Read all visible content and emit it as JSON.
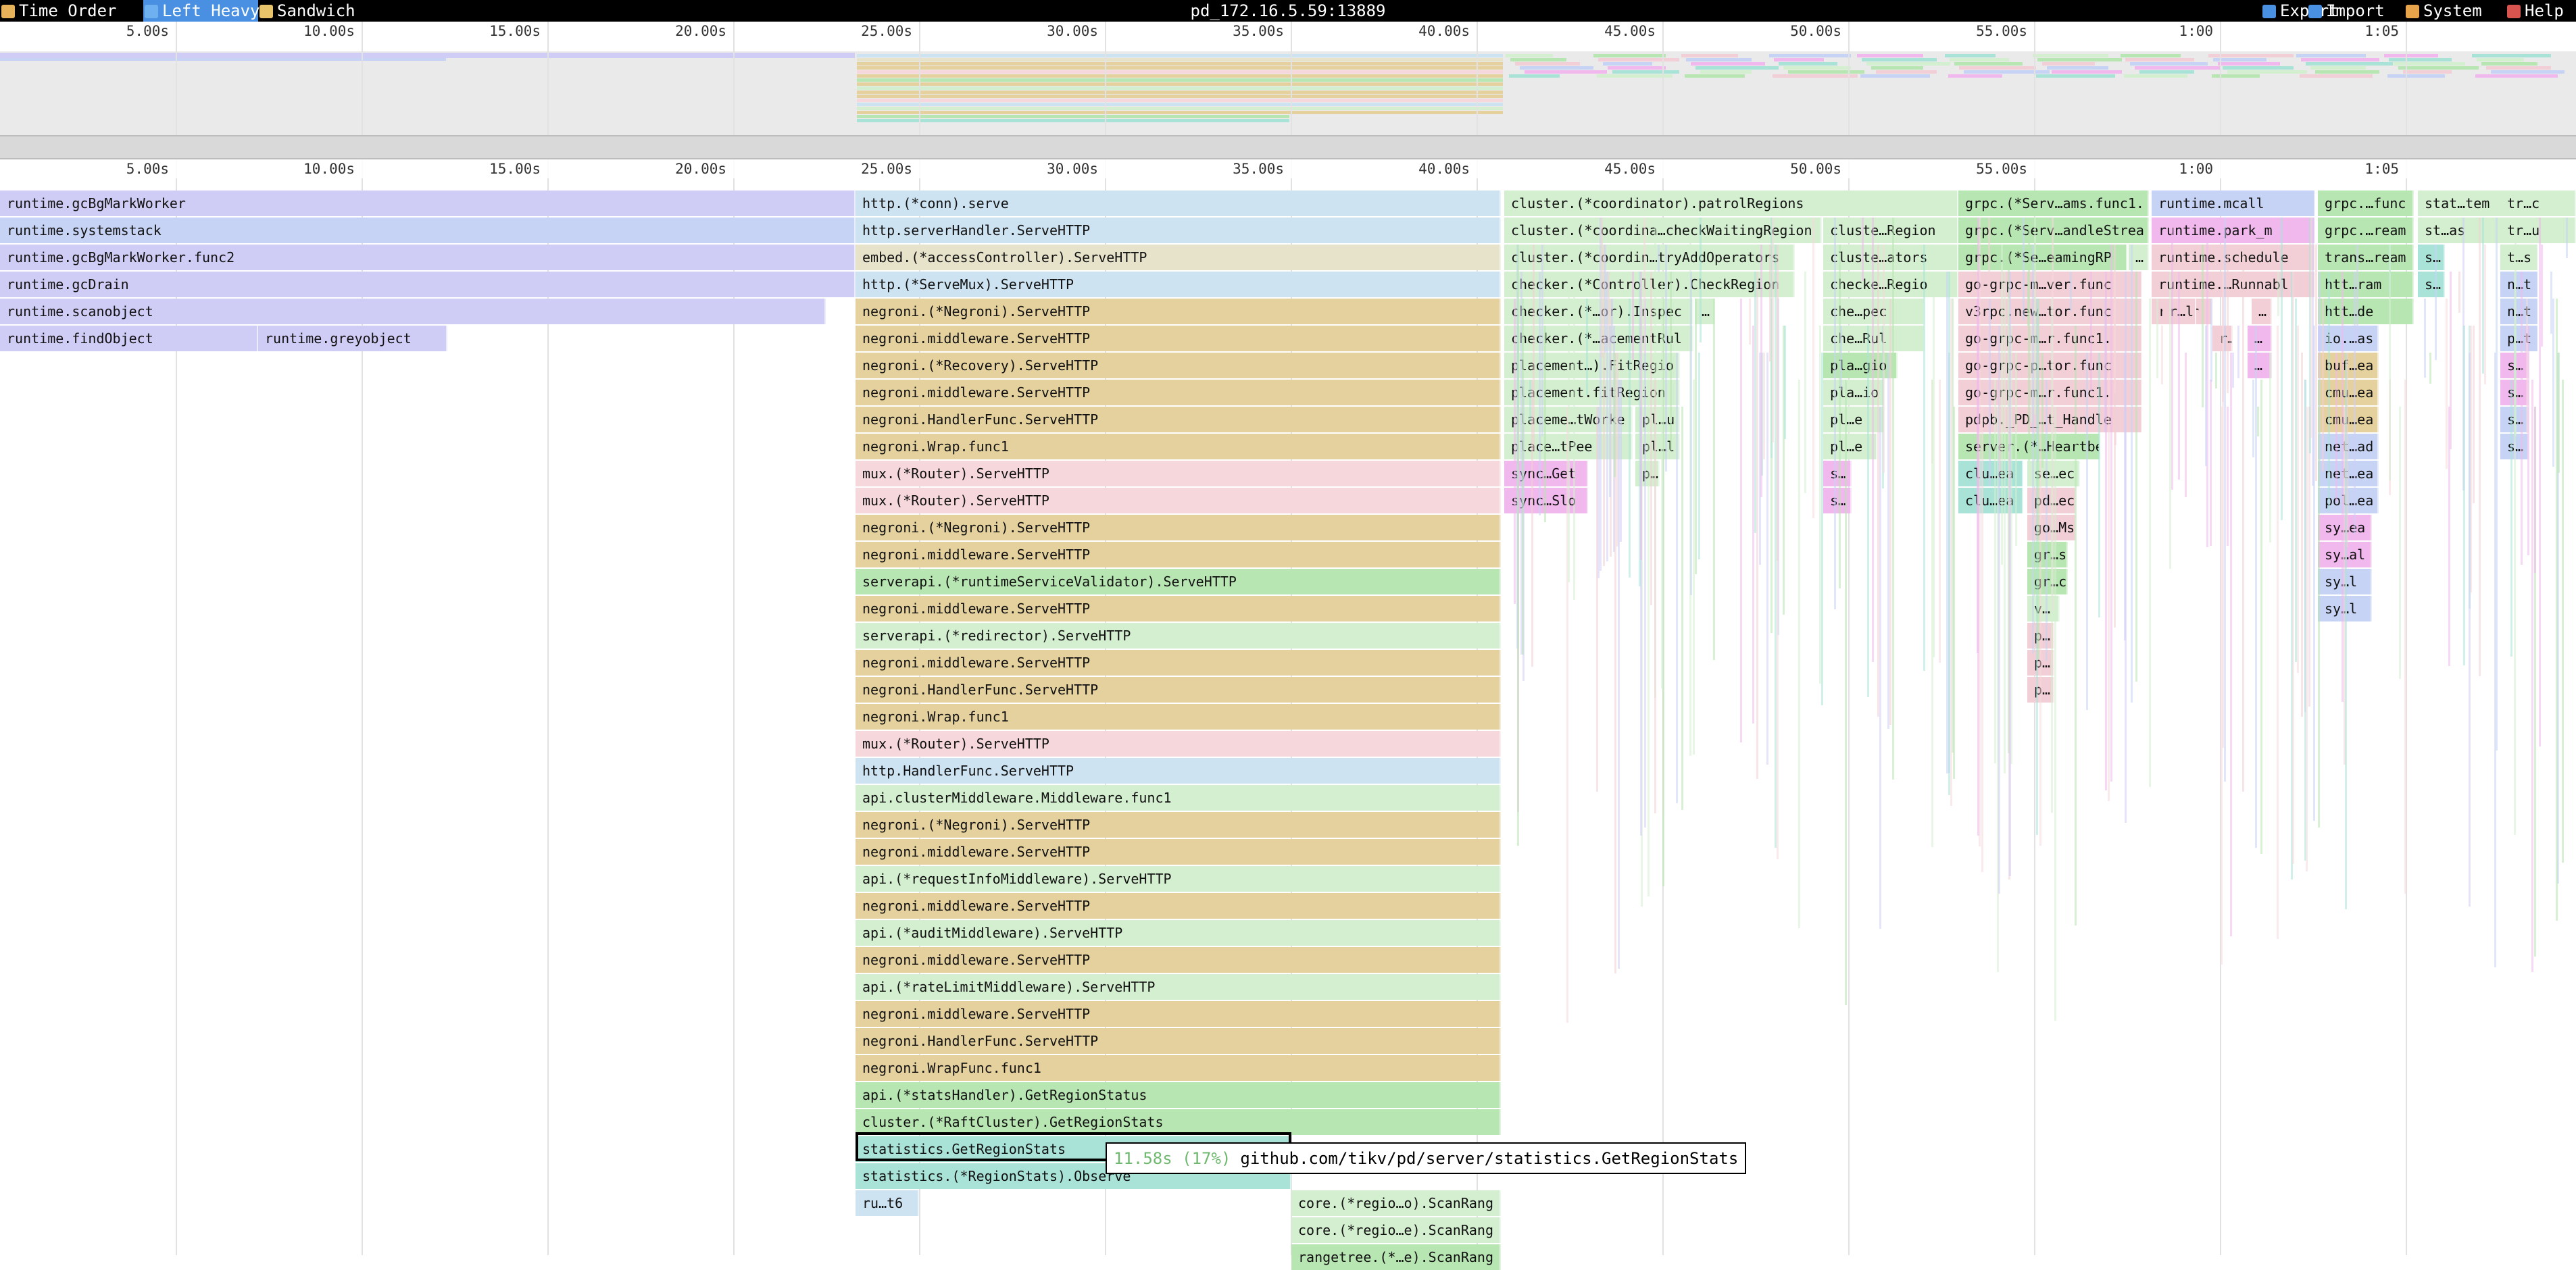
{
  "toolbar": {
    "left": [
      {
        "label": "Time Order",
        "icon": "clock-icon",
        "active": false
      },
      {
        "label": "Left Heavy",
        "icon": "left-heavy-icon",
        "active": true
      },
      {
        "label": "Sandwich",
        "icon": "sandwich-icon",
        "active": false
      }
    ],
    "title": "pd_172.16.5.59:13889",
    "right": [
      {
        "label": "Export",
        "icon": "export-icon"
      },
      {
        "label": "Import",
        "icon": "import-icon"
      },
      {
        "label": "System",
        "icon": "palette-icon"
      },
      {
        "label": "Help",
        "icon": "help-icon"
      }
    ]
  },
  "axis_ticks": [
    "5.00s",
    "10.00s",
    "15.00s",
    "20.00s",
    "25.00s",
    "30.00s",
    "35.00s",
    "40.00s",
    "45.00s",
    "50.00s",
    "55.00s",
    "1:00",
    "1:05"
  ],
  "colors": {
    "blue": "#c6d3f5",
    "lavender": "#cfcdf6",
    "lightblue": "#cde3f2",
    "cream": "#e7e3cb",
    "tan": "#e4d19e",
    "pink": "#f6d8dc",
    "green": "#b8e6b2",
    "lightgreen": "#d3efcf",
    "teal": "#a9e3d8",
    "rose": "#f2cfd6",
    "magenta": "#f0b8ec",
    "selection": "#000000"
  },
  "frames": [
    {
      "label": "runtime.gcBgMarkWorker",
      "color": "lavender"
    },
    {
      "label": "runtime.systemstack",
      "color": "blue"
    },
    {
      "label": "runtime.gcBgMarkWorker.func2",
      "color": "lavender"
    },
    {
      "label": "runtime.gcDrain",
      "color": "lavender"
    },
    {
      "label": "runtime.scanobject",
      "color": "lavender"
    },
    {
      "label": "runtime.findObject",
      "color": "lavender"
    },
    {
      "label": "runtime.greyobject",
      "color": "lavender"
    },
    {
      "label": "http.(*conn).serve",
      "color": "lightblue"
    },
    {
      "label": "http.serverHandler.ServeHTTP",
      "color": "lightblue"
    },
    {
      "label": "embed.(*accessController).ServeHTTP",
      "color": "cream"
    },
    {
      "label": "http.(*ServeMux).ServeHTTP",
      "color": "lightblue"
    },
    {
      "label": "negroni.(*Negroni).ServeHTTP",
      "color": "tan"
    },
    {
      "label": "negroni.middleware.ServeHTTP",
      "color": "tan"
    },
    {
      "label": "negroni.(*Recovery).ServeHTTP",
      "color": "tan"
    },
    {
      "label": "negroni.middleware.ServeHTTP",
      "color": "tan"
    },
    {
      "label": "negroni.HandlerFunc.ServeHTTP",
      "color": "tan"
    },
    {
      "label": "negroni.Wrap.func1",
      "color": "tan"
    },
    {
      "label": "mux.(*Router).ServeHTTP",
      "color": "pink"
    },
    {
      "label": "mux.(*Router).ServeHTTP",
      "color": "pink"
    },
    {
      "label": "negroni.(*Negroni).ServeHTTP",
      "color": "tan"
    },
    {
      "label": "negroni.middleware.ServeHTTP",
      "color": "tan"
    },
    {
      "label": "serverapi.(*runtimeServiceValidator).ServeHTTP",
      "color": "green"
    },
    {
      "label": "negroni.middleware.ServeHTTP",
      "color": "tan"
    },
    {
      "label": "serverapi.(*redirector).ServeHTTP",
      "color": "lightgreen"
    },
    {
      "label": "negroni.middleware.ServeHTTP",
      "color": "tan"
    },
    {
      "label": "negroni.HandlerFunc.ServeHTTP",
      "color": "tan"
    },
    {
      "label": "negroni.Wrap.func1",
      "color": "tan"
    },
    {
      "label": "mux.(*Router).ServeHTTP",
      "color": "pink"
    },
    {
      "label": "http.HandlerFunc.ServeHTTP",
      "color": "lightblue"
    },
    {
      "label": "api.clusterMiddleware.Middleware.func1",
      "color": "lightgreen"
    },
    {
      "label": "negroni.(*Negroni).ServeHTTP",
      "color": "tan"
    },
    {
      "label": "negroni.middleware.ServeHTTP",
      "color": "tan"
    },
    {
      "label": "api.(*requestInfoMiddleware).ServeHTTP",
      "color": "lightgreen"
    },
    {
      "label": "negroni.middleware.ServeHTTP",
      "color": "tan"
    },
    {
      "label": "api.(*auditMiddleware).ServeHTTP",
      "color": "lightgreen"
    },
    {
      "label": "negroni.middleware.ServeHTTP",
      "color": "tan"
    },
    {
      "label": "api.(*rateLimitMiddleware).ServeHTTP",
      "color": "lightgreen"
    },
    {
      "label": "negroni.middleware.ServeHTTP",
      "color": "tan"
    },
    {
      "label": "negroni.HandlerFunc.ServeHTTP",
      "color": "tan"
    },
    {
      "label": "negroni.WrapFunc.func1",
      "color": "tan"
    },
    {
      "label": "api.(*statsHandler).GetRegionStatus",
      "color": "green"
    },
    {
      "label": "cluster.(*RaftCluster).GetRegionStats",
      "color": "green"
    },
    {
      "label": "statistics.GetRegionStats",
      "color": "teal"
    },
    {
      "label": "statistics.(*RegionStats).Observe",
      "color": "teal"
    },
    {
      "label": "ru…t6",
      "color": "lightblue"
    },
    {
      "label": "core.(*regio…o).ScanRang",
      "color": "lightgreen"
    },
    {
      "label": "core.(*regio…e).ScanRang",
      "color": "lightgreen"
    },
    {
      "label": "rangetree.(*…e).ScanRang",
      "color": "green"
    },
    {
      "label": "cluster.(*coordinator).patrolRegions",
      "color": "lightgreen"
    },
    {
      "label": "cluster.(*coordina…checkWaitingRegion",
      "color": "lightgreen"
    },
    {
      "label": "cluster.(*coordin…tryAddOperators",
      "color": "lightgreen"
    },
    {
      "label": "checker.(*Controller).CheckRegion",
      "color": "lightgreen"
    },
    {
      "label": "checker.(*…or).Inspec",
      "color": "lightgreen"
    },
    {
      "label": "checker.(*…acementRul",
      "color": "lightgreen"
    },
    {
      "label": "placement…).FitRegio",
      "color": "lightgreen"
    },
    {
      "label": "placement.fitRegion",
      "color": "lightgreen"
    },
    {
      "label": "placeme…tWorke",
      "color": "lightgreen"
    },
    {
      "label": "pl…u",
      "color": "lightgreen"
    },
    {
      "label": "place…tPee",
      "color": "lightgreen"
    },
    {
      "label": "pl…l",
      "color": "lightgreen"
    },
    {
      "label": "sync…Get",
      "color": "magenta"
    },
    {
      "label": "p…",
      "color": "lightgreen"
    },
    {
      "label": "sync…Slo",
      "color": "magenta"
    },
    {
      "label": "…",
      "color": "lightgreen"
    },
    {
      "label": "cluste…Region",
      "color": "lightgreen"
    },
    {
      "label": "cluste…ators",
      "color": "lightgreen"
    },
    {
      "label": "checke…Regio",
      "color": "lightgreen"
    },
    {
      "label": "che…pec",
      "color": "lightgreen"
    },
    {
      "label": "che…Rul",
      "color": "lightgreen"
    },
    {
      "label": "pla…gio",
      "color": "green"
    },
    {
      "label": "pla…io",
      "color": "lightgreen"
    },
    {
      "label": "pl…e",
      "color": "lightgreen"
    },
    {
      "label": "pl…e",
      "color": "lightgreen"
    },
    {
      "label": "s…",
      "color": "magenta"
    },
    {
      "label": "s…",
      "color": "magenta"
    },
    {
      "label": "grpc.(*Serv…ams.func1.",
      "color": "green"
    },
    {
      "label": "grpc.(*Serv…andleStrea",
      "color": "green"
    },
    {
      "label": "grpc.(*Se…eamingRP",
      "color": "green"
    },
    {
      "label": "…",
      "color": "lightgreen"
    },
    {
      "label": "go-grpc-m…ver.func",
      "color": "rose"
    },
    {
      "label": "v3rpc.new…tor.func",
      "color": "rose"
    },
    {
      "label": "go-grpc-m…r.func1.",
      "color": "rose"
    },
    {
      "label": "go-grpc-p…tor.func",
      "color": "rose"
    },
    {
      "label": "go-grpc-m…r.func1.",
      "color": "rose"
    },
    {
      "label": "pdpb._PD_…t_Handle",
      "color": "rose"
    },
    {
      "label": "server.(*…Heartbea",
      "color": "green"
    },
    {
      "label": "clu…ea",
      "color": "teal"
    },
    {
      "label": "se…ec",
      "color": "lightgreen"
    },
    {
      "label": "clu…ea",
      "color": "teal"
    },
    {
      "label": "pd…ec",
      "color": "rose"
    },
    {
      "label": "go…Ms",
      "color": "rose"
    },
    {
      "label": "gr…s",
      "color": "green"
    },
    {
      "label": "gr…c",
      "color": "green"
    },
    {
      "label": "v…",
      "color": "lightgreen"
    },
    {
      "label": "p…",
      "color": "rose"
    },
    {
      "label": "p…",
      "color": "rose"
    },
    {
      "label": "p…",
      "color": "rose"
    },
    {
      "label": "runtime.mcall",
      "color": "blue"
    },
    {
      "label": "runtime.park_m",
      "color": "magenta"
    },
    {
      "label": "runtime.schedule",
      "color": "rose"
    },
    {
      "label": "runtime.…Runnabl",
      "color": "rose"
    },
    {
      "label": "ru…or",
      "color": "rose"
    },
    {
      "label": "r…l",
      "color": "rose"
    },
    {
      "label": "…",
      "color": "rose"
    },
    {
      "label": "r…",
      "color": "rose"
    },
    {
      "label": "…",
      "color": "magenta"
    },
    {
      "label": "…",
      "color": "magenta"
    },
    {
      "label": "grpc.…func",
      "color": "green"
    },
    {
      "label": "grpc.…ream",
      "color": "green"
    },
    {
      "label": "trans…ream",
      "color": "green"
    },
    {
      "label": "htt…ram",
      "color": "green"
    },
    {
      "label": "htt…de",
      "color": "green"
    },
    {
      "label": "io.…as",
      "color": "blue"
    },
    {
      "label": "buf…ea",
      "color": "tan"
    },
    {
      "label": "cmu…ea",
      "color": "tan"
    },
    {
      "label": "cmu…ea",
      "color": "tan"
    },
    {
      "label": "net…ad",
      "color": "blue"
    },
    {
      "label": "net…ea",
      "color": "blue"
    },
    {
      "label": "pol…ea",
      "color": "blue"
    },
    {
      "label": "sy…ea",
      "color": "magenta"
    },
    {
      "label": "sy…al",
      "color": "magenta"
    },
    {
      "label": "sy…l",
      "color": "blue"
    },
    {
      "label": "sy…l",
      "color": "blue"
    },
    {
      "label": "stat…tem",
      "color": "lightgreen"
    },
    {
      "label": "st…as",
      "color": "lightgreen"
    },
    {
      "label": "s…",
      "color": "teal"
    },
    {
      "label": "s…",
      "color": "teal"
    },
    {
      "label": "tr…c",
      "color": "lightgreen"
    },
    {
      "label": "tr…u",
      "color": "lightgreen"
    },
    {
      "label": "t…s",
      "color": "lightgreen"
    },
    {
      "label": "n…t",
      "color": "blue"
    },
    {
      "label": "n…t",
      "color": "blue"
    },
    {
      "label": "p…t",
      "color": "blue"
    },
    {
      "label": "s…",
      "color": "magenta"
    },
    {
      "label": "s…",
      "color": "magenta"
    },
    {
      "label": "s…",
      "color": "blue"
    },
    {
      "label": "s…",
      "color": "blue"
    }
  ],
  "tooltip": {
    "time": "11.58s (17%)",
    "name": "github.com/tikv/pd/server/statistics.GetRegionStats"
  }
}
